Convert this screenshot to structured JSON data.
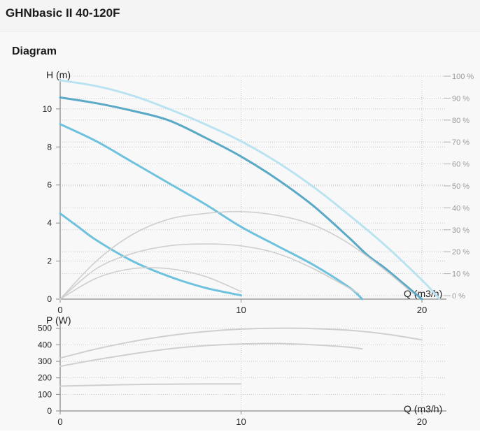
{
  "header": {
    "title": "GHNbasic II 40-120F"
  },
  "section": {
    "title": "Diagram"
  },
  "colors": {
    "pump_curve": "#6ec2dd",
    "pump_curve_max": "#5aa9c6",
    "efficiency_curve": "#cfcfcf",
    "efficiency_max": "#b9e3f0",
    "grid": "#bdbdbd",
    "axis": "#8a8a8a"
  },
  "chart_data": [
    {
      "type": "line",
      "id": "head",
      "ylabel": "H (m)",
      "xlabel": "Q (m3/h)",
      "xlim": [
        0,
        21
      ],
      "ylim": [
        0,
        11.5
      ],
      "x_ticks": [
        0,
        10,
        20
      ],
      "y_ticks": [
        0,
        2,
        4,
        6,
        8,
        10
      ],
      "secondary_axis": {
        "label_ticks": [
          "0 %",
          "10 %",
          "20 %",
          "30 %",
          "40 %",
          "50 %",
          "60 %",
          "70 %",
          "80 %",
          "90 %",
          "100 %"
        ],
        "values": [
          0,
          10,
          20,
          30,
          40,
          50,
          60,
          70,
          80,
          90,
          100
        ],
        "max_value": 100
      },
      "grid": true,
      "series": [
        {
          "role": "pump-max",
          "x": [
            0,
            2,
            4,
            6,
            8,
            10,
            12,
            14,
            16,
            17,
            18,
            19,
            20
          ],
          "y": [
            10.6,
            10.3,
            9.9,
            9.4,
            8.5,
            7.5,
            6.3,
            4.9,
            3.2,
            2.3,
            1.6,
            0.8,
            0
          ]
        },
        {
          "role": "pump-mid",
          "x": [
            0,
            2,
            4,
            6,
            8,
            10,
            12,
            14,
            16,
            16.7
          ],
          "y": [
            9.2,
            8.3,
            7.2,
            6.1,
            5.0,
            3.8,
            2.8,
            1.8,
            0.6,
            0
          ]
        },
        {
          "role": "pump-min",
          "x": [
            0,
            1,
            2,
            4,
            6,
            8,
            10
          ],
          "y": [
            4.5,
            3.8,
            3.1,
            2.0,
            1.2,
            0.6,
            0.2
          ]
        },
        {
          "role": "efficiency-max",
          "x": [
            0,
            2,
            4,
            6,
            8,
            10,
            12,
            14,
            16,
            18,
            20,
            21
          ],
          "y": [
            11.5,
            11.2,
            10.7,
            10.0,
            9.2,
            8.3,
            7.2,
            5.9,
            4.4,
            2.8,
            1.0,
            0
          ]
        },
        {
          "role": "efficiency-1",
          "x": [
            0,
            2,
            4,
            6,
            8,
            10,
            12,
            14,
            16,
            18,
            19.5
          ],
          "y": [
            0,
            2.0,
            3.4,
            4.2,
            4.5,
            4.6,
            4.4,
            3.9,
            2.9,
            1.5,
            0.3
          ]
        },
        {
          "role": "efficiency-2",
          "x": [
            0,
            2,
            4,
            6,
            8,
            10,
            12,
            14,
            16.5
          ],
          "y": [
            0,
            1.6,
            2.4,
            2.8,
            2.9,
            2.8,
            2.4,
            1.6,
            0.3
          ]
        },
        {
          "role": "efficiency-3",
          "x": [
            0,
            2,
            4,
            6,
            8,
            10
          ],
          "y": [
            0,
            1.1,
            1.6,
            1.6,
            1.2,
            0.4
          ]
        }
      ]
    },
    {
      "type": "line",
      "id": "power",
      "ylabel": "P (W)",
      "xlabel": "Q (m3/h)",
      "xlim": [
        0,
        21
      ],
      "ylim": [
        0,
        520
      ],
      "x_ticks": [
        0,
        10,
        20
      ],
      "y_ticks": [
        0,
        100,
        200,
        300,
        400,
        500
      ],
      "grid": true,
      "series": [
        {
          "role": "power-max",
          "x": [
            0,
            2,
            4,
            6,
            8,
            10,
            12,
            14,
            16,
            18,
            20
          ],
          "y": [
            320,
            375,
            420,
            455,
            480,
            495,
            500,
            498,
            488,
            465,
            430
          ]
        },
        {
          "role": "power-mid",
          "x": [
            0,
            2,
            4,
            6,
            8,
            10,
            12,
            14,
            16,
            16.7
          ],
          "y": [
            270,
            310,
            345,
            375,
            395,
            405,
            408,
            400,
            385,
            375
          ]
        },
        {
          "role": "power-min",
          "x": [
            0,
            2,
            4,
            6,
            8,
            10
          ],
          "y": [
            150,
            155,
            160,
            162,
            163,
            163
          ]
        }
      ]
    }
  ]
}
